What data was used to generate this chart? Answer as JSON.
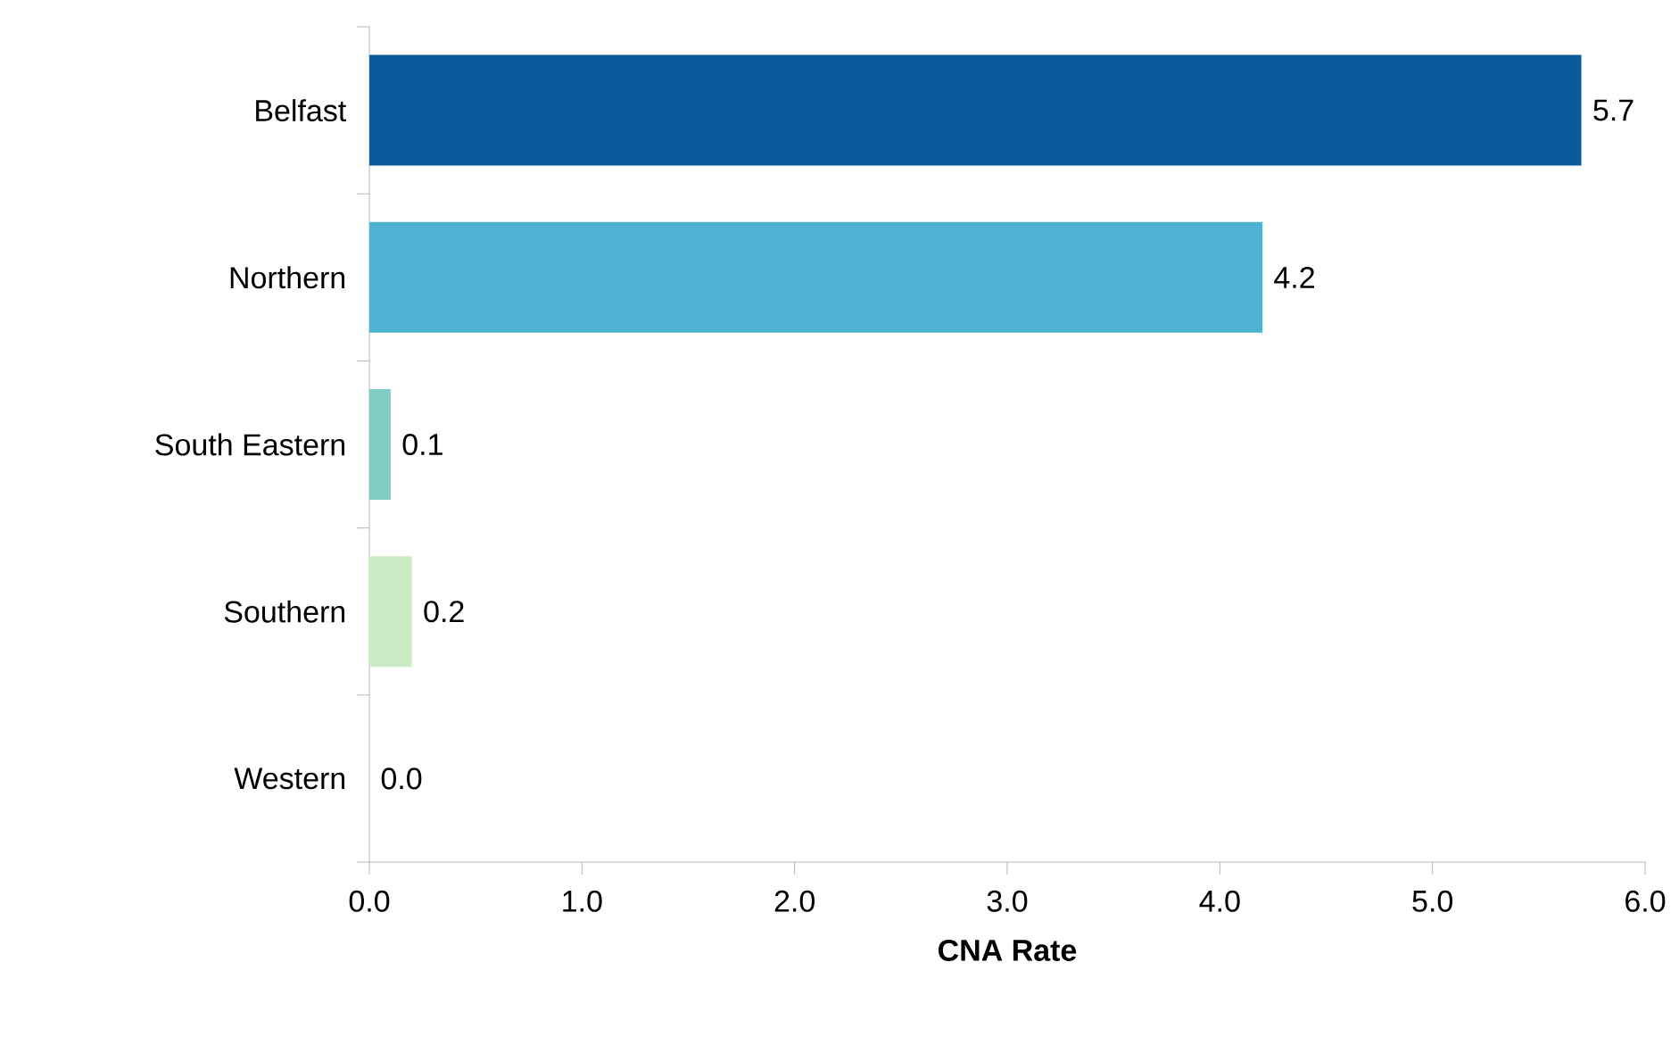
{
  "chart_data": {
    "type": "bar",
    "orientation": "horizontal",
    "categories": [
      "Belfast",
      "Northern",
      "South Eastern",
      "Southern",
      "Western"
    ],
    "values": [
      5.7,
      4.2,
      0.1,
      0.2,
      0.0
    ],
    "colors": [
      "#0b5a9c",
      "#4eb3d3",
      "#7fcdc4",
      "#ccebc5",
      "#a8ddb5"
    ],
    "xlim": [
      0,
      6
    ],
    "xticks": [
      {
        "value": 0,
        "label": "0.0"
      },
      {
        "value": 1,
        "label": "1.0"
      },
      {
        "value": 2,
        "label": "2.0"
      },
      {
        "value": 3,
        "label": "3.0"
      },
      {
        "value": 4,
        "label": "4.0"
      },
      {
        "value": 5,
        "label": "5.0"
      },
      {
        "value": 6,
        "label": "6.0"
      }
    ],
    "xlabel": "CNA Rate",
    "value_labels": [
      "5.7",
      "4.2",
      "0.1",
      "0.2",
      "0.0"
    ]
  }
}
